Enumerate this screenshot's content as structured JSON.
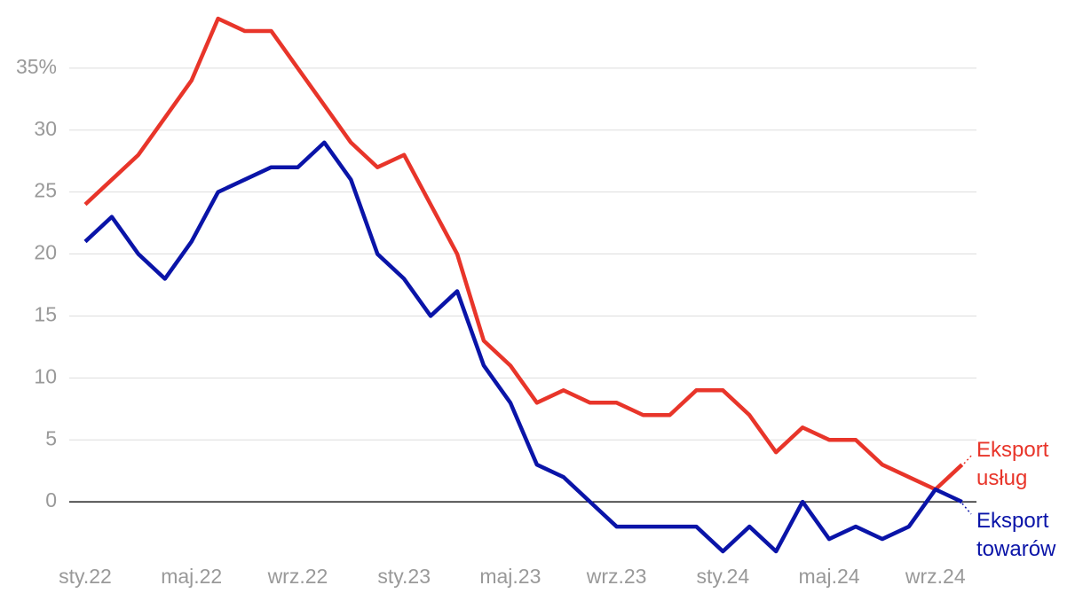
{
  "chart_data": {
    "type": "line",
    "categories": [
      "sty.22",
      null,
      null,
      null,
      "maj.22",
      null,
      null,
      null,
      "wrz.22",
      null,
      null,
      null,
      "sty.23",
      null,
      null,
      null,
      "maj.23",
      null,
      null,
      null,
      "wrz.23",
      null,
      null,
      null,
      "sty.24",
      null,
      null,
      null,
      "maj.24",
      null,
      null,
      null,
      "wrz.24",
      null
    ],
    "series": [
      {
        "name": "Eksport usług",
        "color": "#e8352a",
        "values": [
          24,
          26,
          28,
          31,
          34,
          39,
          38,
          38,
          35,
          32,
          29,
          27,
          28,
          24,
          20,
          13,
          11,
          8,
          9,
          8,
          8,
          7,
          7,
          9,
          9,
          7,
          4,
          6,
          5,
          5,
          3,
          2,
          1,
          3
        ]
      },
      {
        "name": "Eksport towarów",
        "color": "#0a14a8",
        "values": [
          21,
          23,
          20,
          18,
          21,
          25,
          26,
          27,
          27,
          29,
          26,
          20,
          18,
          15,
          17,
          11,
          8,
          3,
          2,
          0,
          -2,
          -2,
          -2,
          -2,
          -4,
          -2,
          -4,
          0,
          -3,
          -2,
          -3,
          -2,
          1,
          0
        ]
      }
    ],
    "ylim": [
      -5,
      40
    ],
    "yticks": [
      0,
      5,
      10,
      15,
      20,
      25,
      30,
      {
        "value": 35,
        "label": "35%"
      }
    ],
    "grid": true
  }
}
